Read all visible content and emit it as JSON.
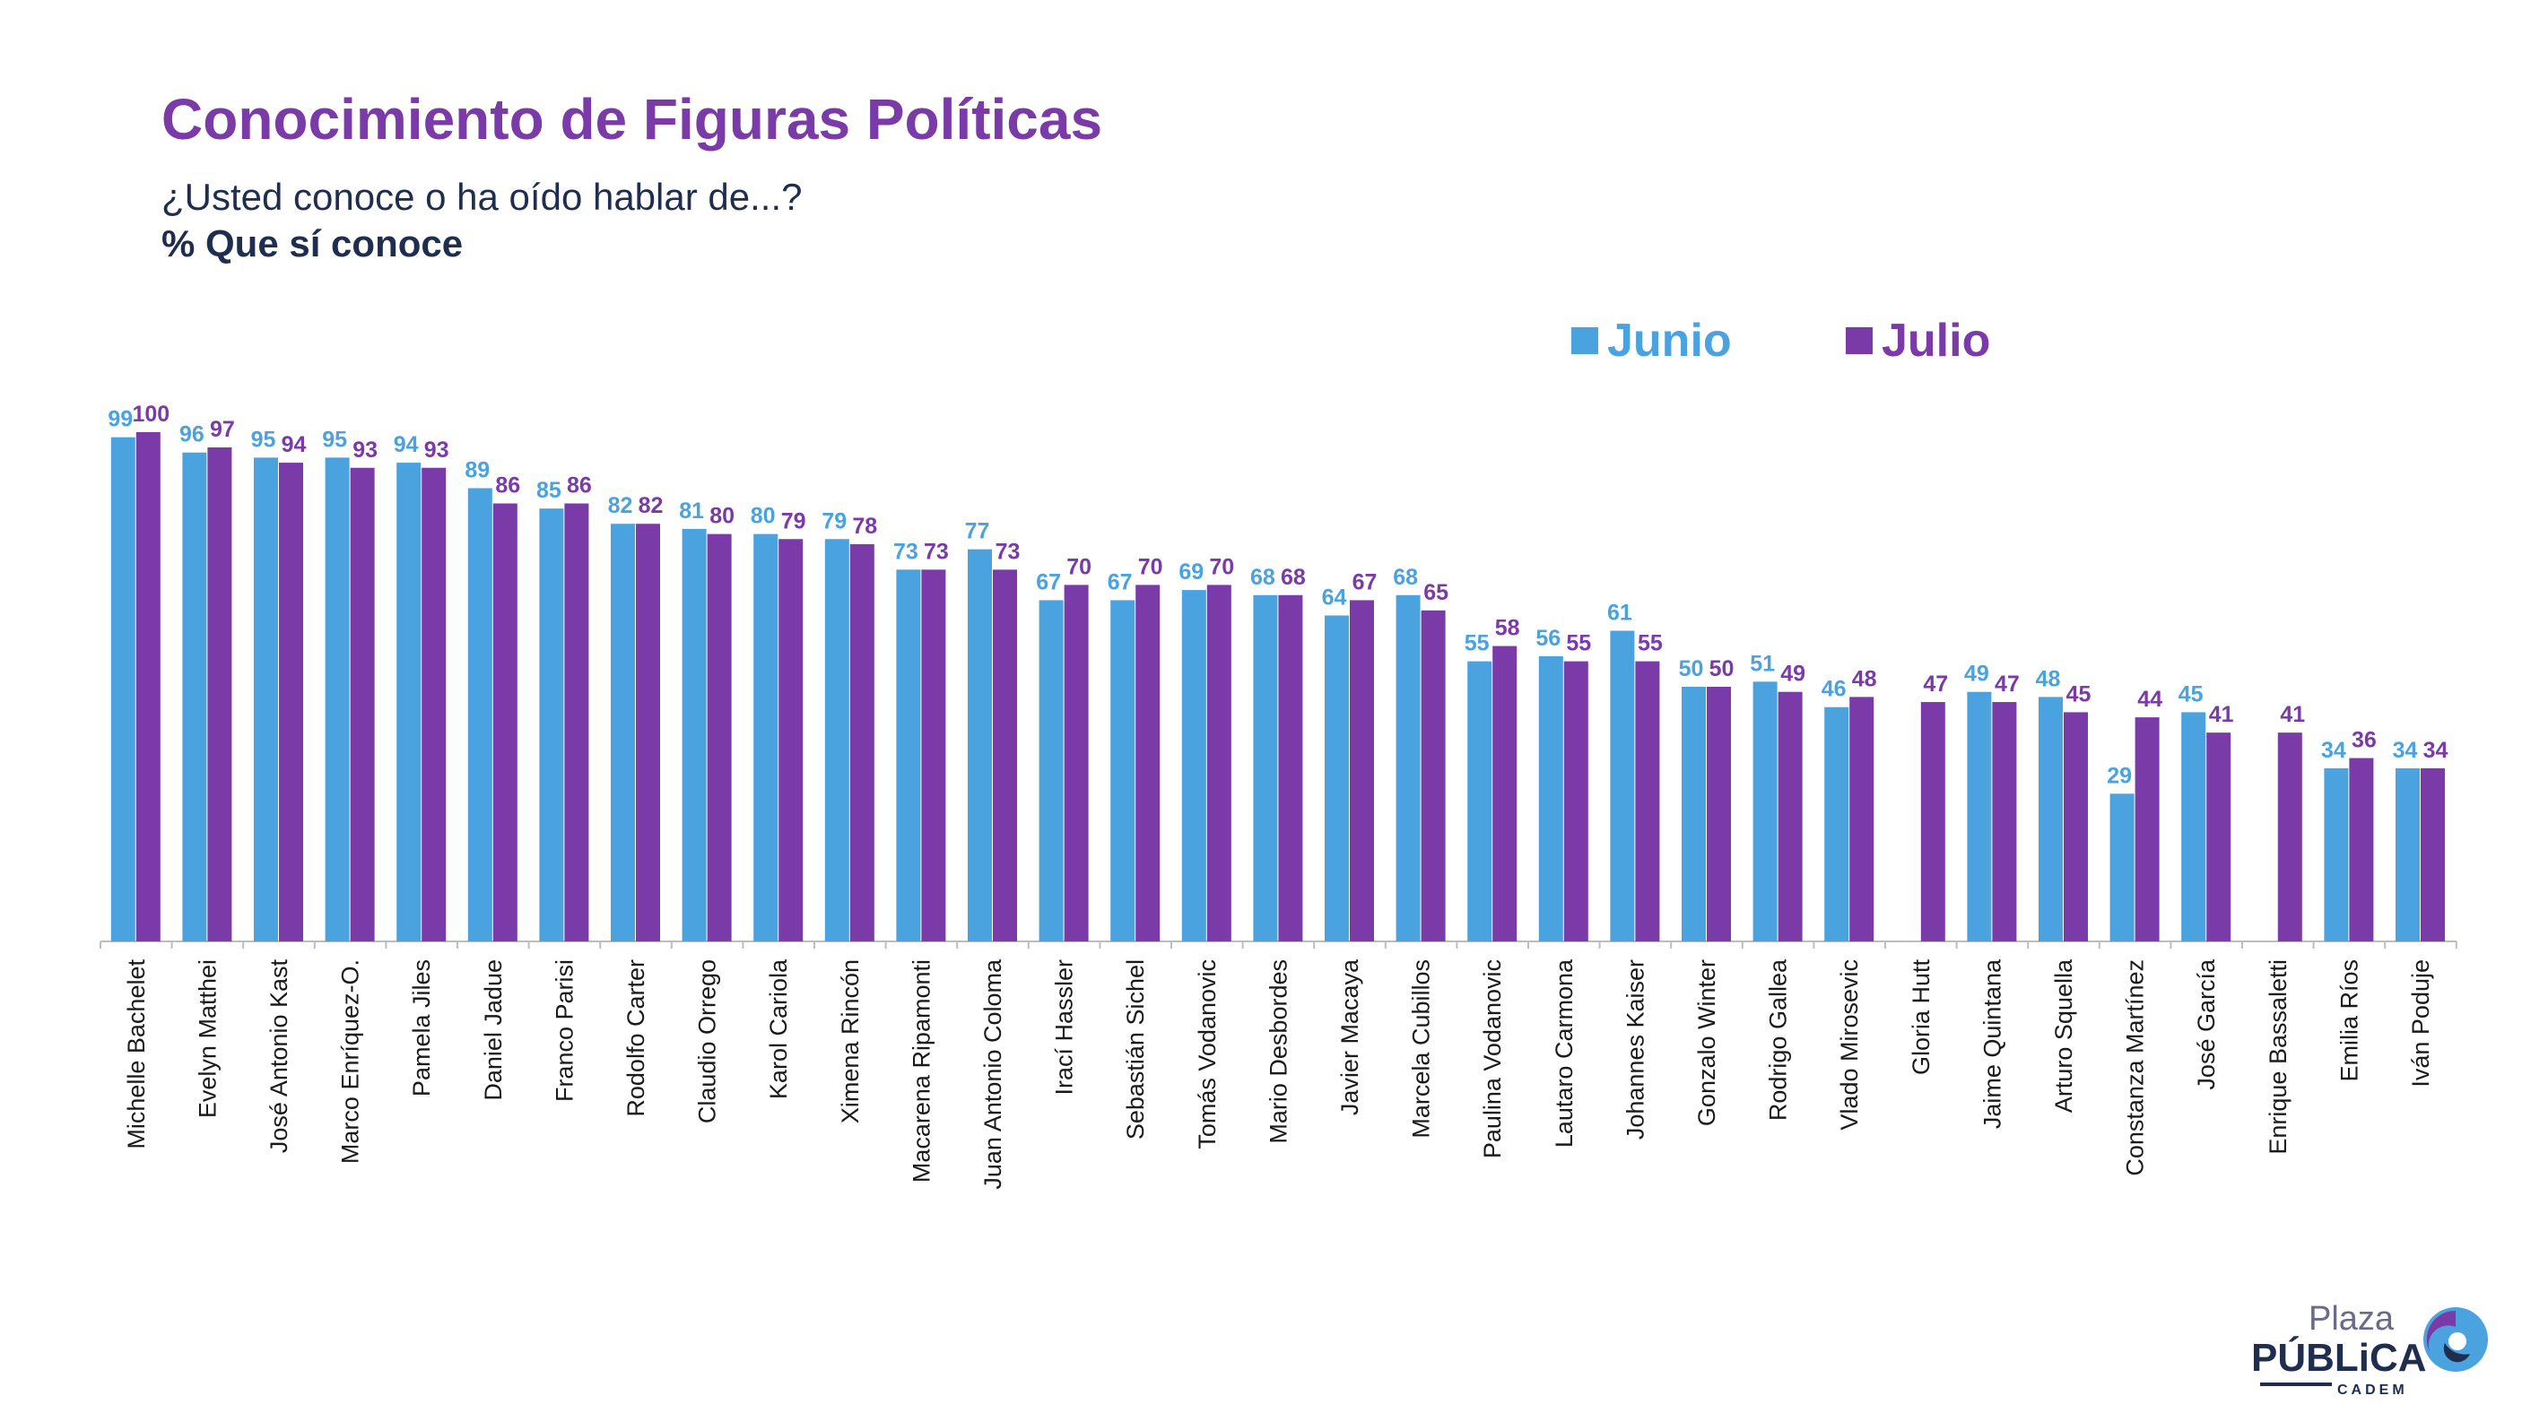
{
  "header": {
    "title": "Conocimiento de Figuras Políticas",
    "subtitle": "¿Usted conoce o ha oído hablar de...?",
    "subtitle_bold": "% Que sí conoce"
  },
  "colors": {
    "junio": "#4aa3df",
    "julio": "#7a3aa8",
    "title": "#7a3aa8",
    "text": "#1f2e4f"
  },
  "chart_data": {
    "type": "bar",
    "title": "Conocimiento de Figuras Políticas",
    "xlabel": "",
    "ylabel": "",
    "ylim": [
      0,
      100
    ],
    "grid": false,
    "legend_position": "top-right",
    "categories": [
      "Michelle Bachelet",
      "Evelyn Matthei",
      "José Antonio Kast",
      "Marco Enríquez-O.",
      "Pamela Jiles",
      "Daniel Jadue",
      "Franco Parisi",
      "Rodolfo Carter",
      "Claudio Orrego",
      "Karol Cariola",
      "Ximena Rincón",
      "Macarena Ripamonti",
      "Juan Antonio Coloma",
      "Irací Hassler",
      "Sebastián Sichel",
      "Tomás Vodanovic",
      "Mario Desbordes",
      "Javier Macaya",
      "Marcela Cubillos",
      "Paulina Vodanovic",
      "Lautaro Carmona",
      "Johannes Kaiser",
      "Gonzalo Winter",
      "Rodrigo Gallea",
      "Vlado Mirosevic",
      "Gloria Hutt",
      "Jaime Quintana",
      "Arturo Squella",
      "Constanza Martínez",
      "José García",
      "Enrique Bassaletti",
      "Emilia Ríos",
      "Iván Poduje"
    ],
    "series": [
      {
        "name": "Junio",
        "values": [
          99,
          96,
          95,
          95,
          94,
          89,
          85,
          82,
          81,
          80,
          79,
          73,
          77,
          67,
          67,
          69,
          68,
          64,
          68,
          55,
          56,
          61,
          50,
          51,
          46,
          null,
          49,
          48,
          29,
          45,
          null,
          34,
          34
        ]
      },
      {
        "name": "Julio",
        "values": [
          100,
          97,
          94,
          93,
          93,
          86,
          86,
          82,
          80,
          79,
          78,
          73,
          73,
          70,
          70,
          70,
          68,
          67,
          65,
          58,
          55,
          55,
          50,
          49,
          48,
          47,
          47,
          45,
          44,
          41,
          41,
          36,
          34
        ]
      }
    ]
  },
  "logo": {
    "line1": "Plaza",
    "line2": "PÚBLiCA",
    "line3": "CADEM"
  }
}
